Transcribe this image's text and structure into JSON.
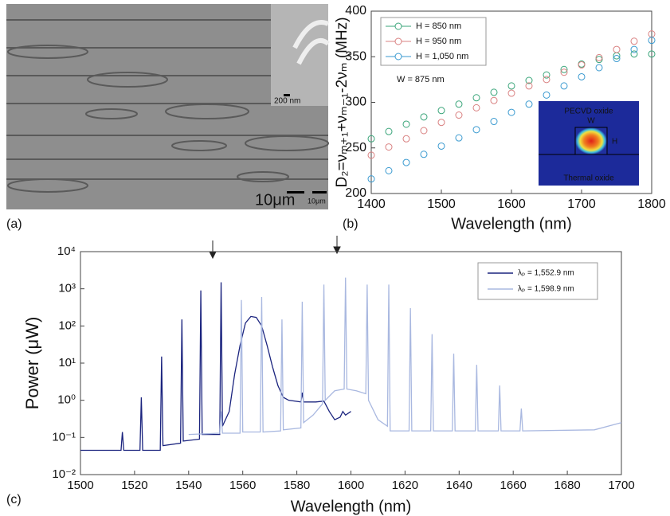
{
  "image_panel": {
    "label": "(a)",
    "scale_bar_main": "10μm",
    "scale_bar_small": "10μm",
    "inset_scale_bar": "200 nm"
  },
  "chart_data": [
    {
      "type": "scatter",
      "panel_label": "(b)",
      "xlabel": "Wavelength (nm)",
      "ylabel": "D₂=νₘ₊₁+νₘ₋₁-2νₘ (MHz)",
      "annotation": "W = 875 nm",
      "inset": {
        "top": "PECVD oxide",
        "width_label": "W",
        "height_label": "H",
        "bottom": "Thermal oxide"
      },
      "xlim": [
        1400,
        1800
      ],
      "xticks": [
        1400,
        1500,
        1600,
        1700,
        1800
      ],
      "ylim": [
        200,
        400
      ],
      "yticks": [
        200,
        250,
        300,
        350,
        400
      ],
      "x": [
        1400,
        1425,
        1450,
        1475,
        1500,
        1525,
        1550,
        1575,
        1600,
        1625,
        1650,
        1675,
        1700,
        1725,
        1750,
        1775,
        1800
      ],
      "series": [
        {
          "name": "H = 850 nm",
          "color": "#3aa57a",
          "values": [
            260,
            268,
            276,
            284,
            291,
            298,
            305,
            311,
            318,
            324,
            330,
            336,
            342,
            347,
            351,
            353,
            353
          ]
        },
        {
          "name": "H = 950 nm",
          "color": "#d98080",
          "values": [
            242,
            251,
            260,
            269,
            278,
            286,
            294,
            302,
            310,
            318,
            325,
            333,
            341,
            349,
            358,
            367,
            375
          ]
        },
        {
          "name": "H = 1,050 nm",
          "color": "#3a9ad0",
          "values": [
            216,
            225,
            234,
            243,
            252,
            261,
            270,
            279,
            289,
            298,
            308,
            318,
            328,
            338,
            348,
            358,
            368
          ]
        }
      ]
    },
    {
      "type": "line",
      "panel_label": "(c)",
      "xlabel": "Wavelength (nm)",
      "ylabel": "Power (μW)",
      "log_y": true,
      "xlim": [
        1500,
        1700
      ],
      "xticks": [
        1500,
        1520,
        1540,
        1560,
        1580,
        1600,
        1620,
        1640,
        1660,
        1680,
        1700
      ],
      "ylim": [
        0.01,
        10000
      ],
      "yticks": [
        {
          "value": 0.01,
          "label": "10⁻²"
        },
        {
          "value": 0.1,
          "label": "10⁻¹"
        },
        {
          "value": 1,
          "label": "10⁰"
        },
        {
          "value": 10,
          "label": "10¹"
        },
        {
          "value": 100,
          "label": "10²"
        },
        {
          "value": 1000,
          "label": "10³"
        },
        {
          "value": 10000,
          "label": "10⁴"
        }
      ],
      "series": [
        {
          "name": "λₚ = 1,552.9 nm",
          "color": "#1a237e",
          "x": [
            1500,
            1515,
            1515.5,
            1516,
            1522,
            1522.5,
            1523,
            1529.5,
            1530,
            1530.5,
            1537,
            1537.5,
            1538,
            1544,
            1544.5,
            1545,
            1547,
            1551.5,
            1552,
            1552.5,
            1555,
            1557,
            1559,
            1561,
            1563,
            1565,
            1567,
            1569,
            1571,
            1573,
            1575,
            1577,
            1581.5,
            1582,
            1582.5,
            1587,
            1590,
            1592,
            1594,
            1596,
            1597,
            1598,
            1600
          ],
          "values": [
            0.045,
            0.045,
            0.14,
            0.045,
            0.045,
            1.2,
            0.045,
            0.045,
            15,
            0.06,
            0.07,
            150,
            0.08,
            0.09,
            900,
            0.12,
            0.12,
            0.12,
            1500,
            0.2,
            0.5,
            5,
            30,
            120,
            180,
            170,
            100,
            30,
            8,
            2.5,
            1.2,
            1,
            0.9,
            1.6,
            0.9,
            0.9,
            0.95,
            0.5,
            0.3,
            0.35,
            0.5,
            0.4,
            0.5
          ]
        },
        {
          "name": "λₚ = 1,598.9 nm",
          "color": "#a9b8e0",
          "x": [
            1540,
            1551.5,
            1552,
            1552.5,
            1559,
            1559.5,
            1560,
            1566.5,
            1567,
            1567.5,
            1574,
            1574.5,
            1575,
            1581.5,
            1582,
            1582.5,
            1586,
            1589.5,
            1590,
            1590.5,
            1594,
            1597.5,
            1598,
            1598.5,
            1602,
            1605.5,
            1606,
            1606.5,
            1610,
            1613.5,
            1614,
            1614.5,
            1621.5,
            1622,
            1622.5,
            1629.5,
            1630,
            1630.5,
            1637.5,
            1638,
            1638.5,
            1646,
            1646.5,
            1647,
            1654.5,
            1655,
            1655.5,
            1662.5,
            1663,
            1663.5,
            1690,
            1700
          ],
          "values": [
            0.12,
            0.13,
            0.5,
            0.13,
            0.13,
            500,
            0.14,
            0.14,
            600,
            0.14,
            0.15,
            150,
            0.16,
            0.18,
            450,
            0.25,
            0.4,
            0.8,
            1300,
            1,
            1.8,
            2,
            2000,
            2,
            1.8,
            1.5,
            1300,
            1,
            0.3,
            0.2,
            1300,
            0.15,
            0.15,
            300,
            0.15,
            0.15,
            60,
            0.15,
            0.15,
            18,
            0.15,
            0.15,
            9,
            0.15,
            0.15,
            2.5,
            0.15,
            0.15,
            0.6,
            0.15,
            0.16,
            0.25
          ]
        }
      ]
    }
  ]
}
